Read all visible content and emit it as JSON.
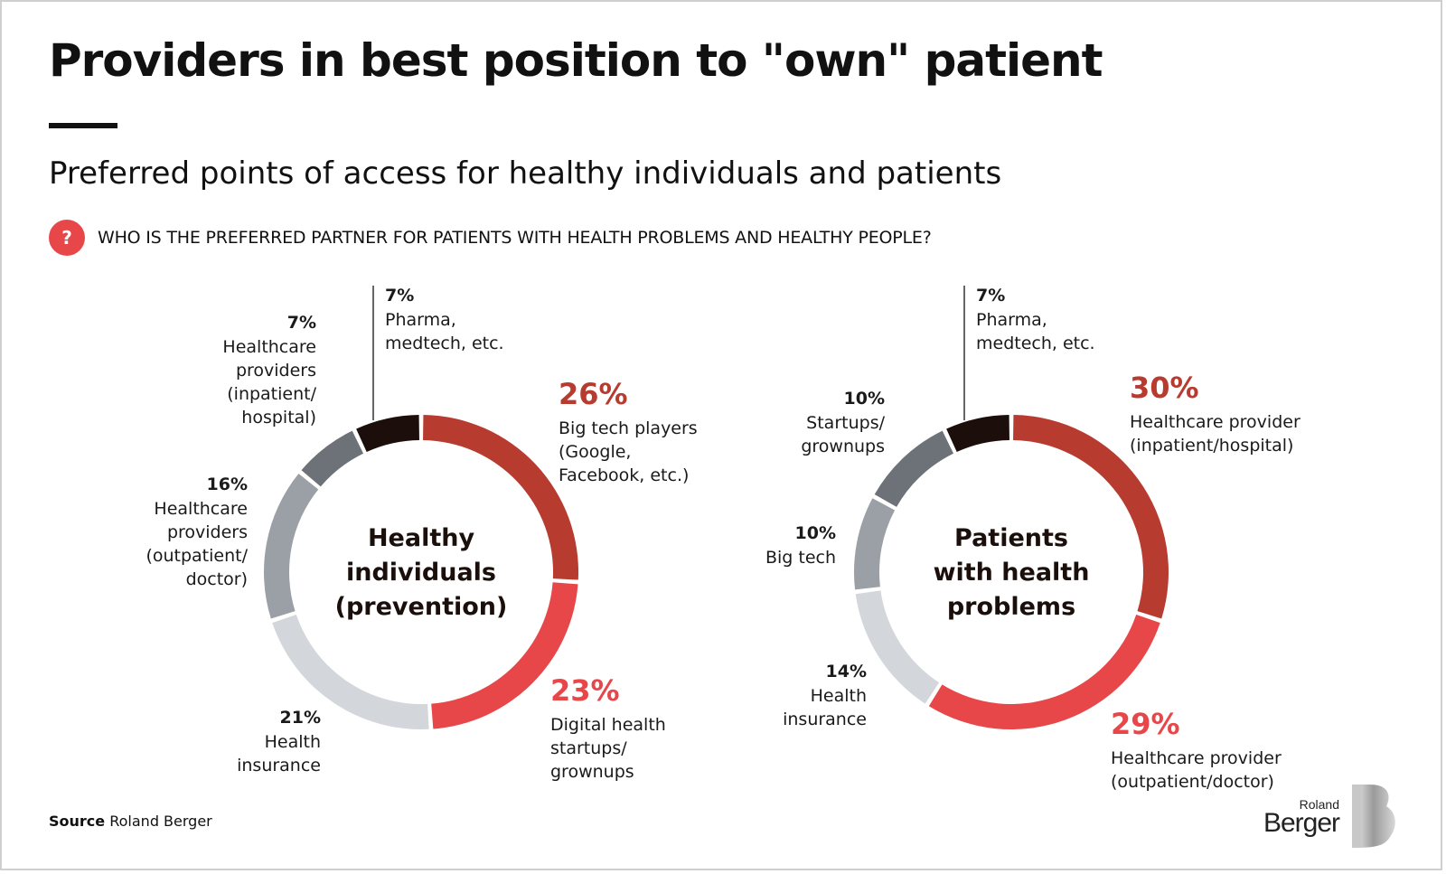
{
  "header": {
    "title": "Providers in best position to \"own\" patient",
    "subtitle": "Preferred points of access for healthy individuals and patients",
    "question_icon": "?",
    "question": "WHO IS THE PREFERRED PARTNER FOR PATIENTS WITH HEALTH PROBLEMS AND HEALTHY PEOPLE?"
  },
  "footer": {
    "source_label": "Source",
    "source_text": "Roland Berger",
    "logo_top": "Roland",
    "logo_bottom": "Berger"
  },
  "colors": {
    "dark_red": "#b83b30",
    "red": "#e8474a",
    "light_gray": "#d3d6da",
    "mid_gray": "#9aa0a6",
    "dark_gray": "#6d7278",
    "black": "#1c0f0b",
    "accent": "#e8474a"
  },
  "chart_data": [
    {
      "type": "donut",
      "center_label": [
        "Healthy",
        "individuals",
        "(prevention)"
      ],
      "slices": [
        {
          "value": 26,
          "pct_label": "26%",
          "label": [
            "Big tech players",
            "(Google,",
            "Facebook, etc.)"
          ],
          "color": "#b83b30",
          "emphasis": true
        },
        {
          "value": 23,
          "pct_label": "23%",
          "label": [
            "Digital health",
            "startups/",
            "grownups"
          ],
          "color": "#e8474a",
          "emphasis": true
        },
        {
          "value": 21,
          "pct_label": "21%",
          "label": [
            "Health",
            "insurance"
          ],
          "color": "#d3d6da",
          "emphasis": false
        },
        {
          "value": 16,
          "pct_label": "16%",
          "label": [
            "Healthcare",
            "providers",
            "(outpatient/",
            "doctor)"
          ],
          "color": "#9aa0a6",
          "emphasis": false
        },
        {
          "value": 7,
          "pct_label": "7%",
          "label": [
            "Healthcare",
            "providers",
            "(inpatient/",
            "hospital)"
          ],
          "color": "#6d7278",
          "emphasis": false
        },
        {
          "value": 7,
          "pct_label": "7%",
          "label": [
            "Pharma,",
            "medtech, etc."
          ],
          "color": "#1c0f0b",
          "emphasis": false
        }
      ]
    },
    {
      "type": "donut",
      "center_label": [
        "Patients",
        "with health",
        "problems"
      ],
      "slices": [
        {
          "value": 30,
          "pct_label": "30%",
          "label": [
            "Healthcare provider",
            "(inpatient/hospital)"
          ],
          "color": "#b83b30",
          "emphasis": true
        },
        {
          "value": 29,
          "pct_label": "29%",
          "label": [
            "Healthcare provider",
            "(outpatient/doctor)"
          ],
          "color": "#e8474a",
          "emphasis": true
        },
        {
          "value": 14,
          "pct_label": "14%",
          "label": [
            "Health",
            "insurance"
          ],
          "color": "#d3d6da",
          "emphasis": false
        },
        {
          "value": 10,
          "pct_label": "10%",
          "label": [
            "Big tech"
          ],
          "color": "#9aa0a6",
          "emphasis": false
        },
        {
          "value": 10,
          "pct_label": "10%",
          "label": [
            "Startups/",
            "grownups"
          ],
          "color": "#6d7278",
          "emphasis": false
        },
        {
          "value": 7,
          "pct_label": "7%",
          "label": [
            "Pharma,",
            "medtech, etc."
          ],
          "color": "#1c0f0b",
          "emphasis": false
        }
      ]
    }
  ]
}
